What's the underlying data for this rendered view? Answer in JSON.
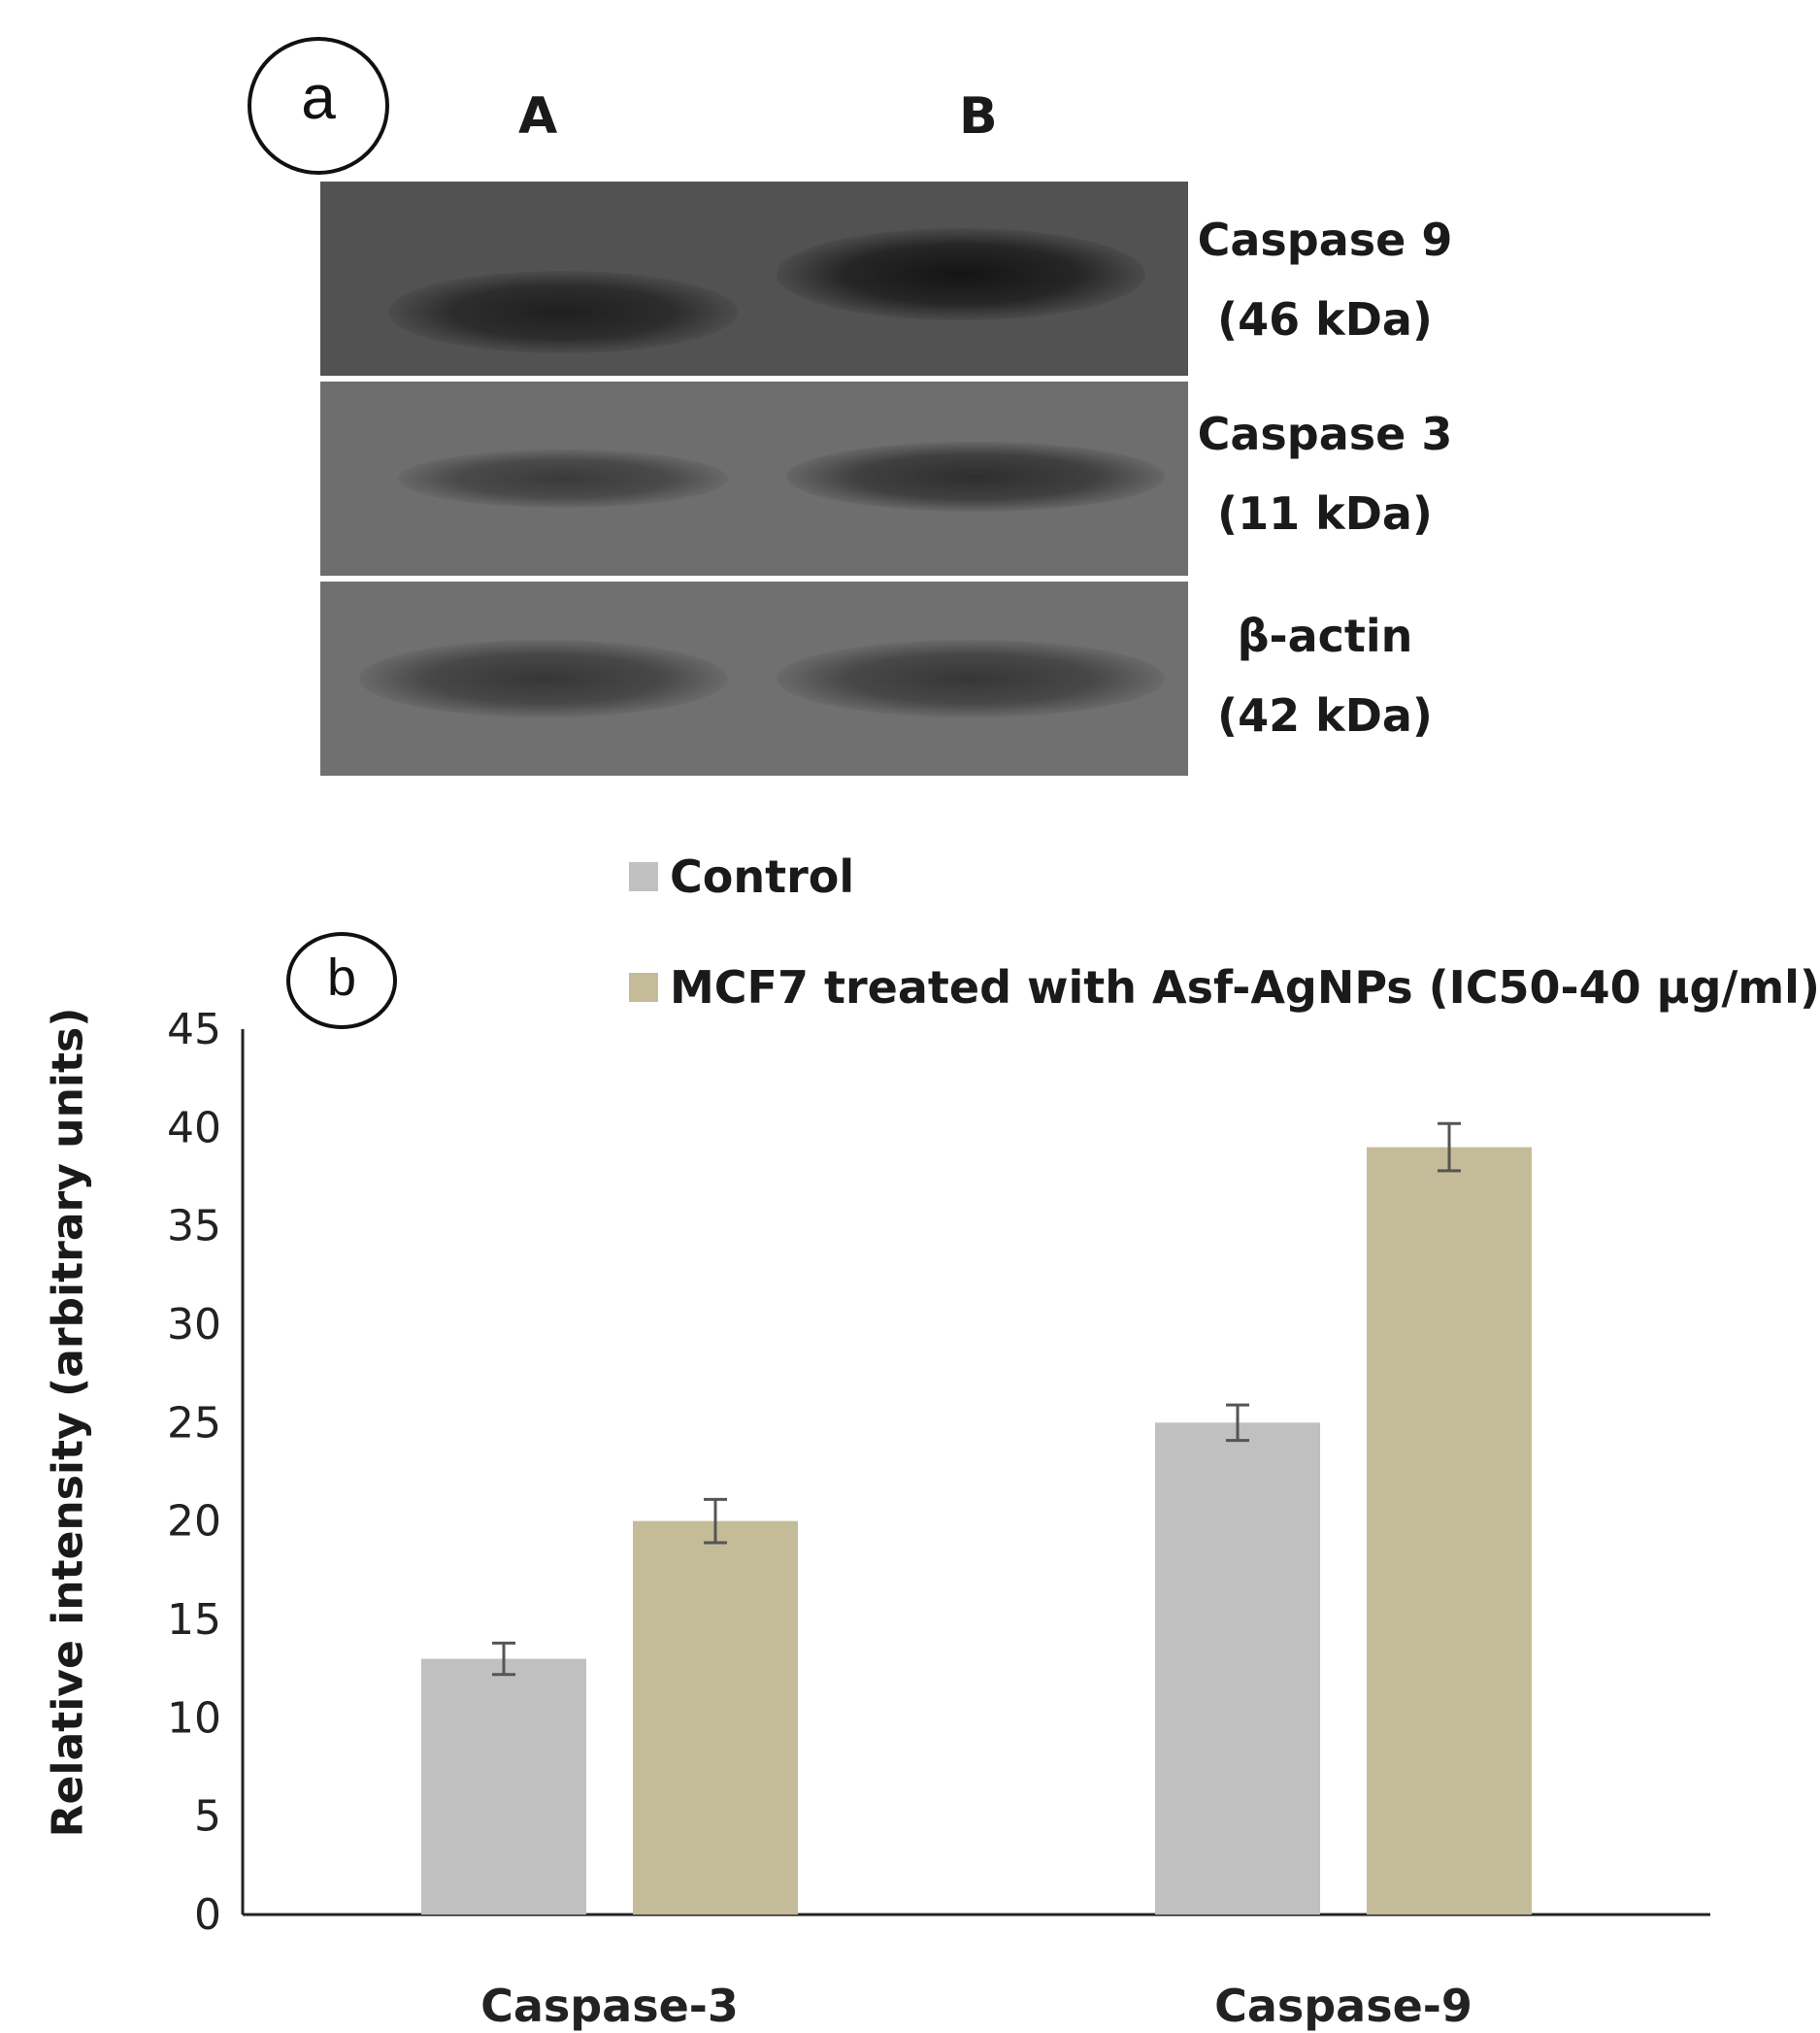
{
  "panel_a": {
    "circle_label": "a",
    "lanes": [
      "A",
      "B"
    ],
    "blots": [
      {
        "protein": "Caspase 9",
        "size": "(46 kDa)"
      },
      {
        "protein": "Caspase 3",
        "size": "(11 kDa)"
      },
      {
        "protein": "β-actin",
        "size": "(42 kDa)"
      }
    ]
  },
  "panel_b": {
    "circle_label": "b"
  },
  "colors": {
    "control": "#c0c0c0",
    "treated": "#c4bc98"
  },
  "chart_data": {
    "type": "bar",
    "categories": [
      "Caspase-3",
      "Caspase-9"
    ],
    "series": [
      {
        "name": "Control",
        "values": [
          13,
          25
        ],
        "errors": [
          0.8,
          0.9
        ]
      },
      {
        "name": "MCF7 treated with Asf-AgNPs (IC50-40 μg/ml)",
        "values": [
          20,
          39
        ],
        "errors": [
          1.1,
          1.2
        ]
      }
    ],
    "ylabel": "Relative intensity (arbitrary units)",
    "xlabel": "",
    "ylim": [
      0,
      45
    ],
    "yticks": [
      0,
      5,
      10,
      15,
      20,
      25,
      30,
      35,
      40,
      45
    ],
    "legend_position": "top"
  }
}
